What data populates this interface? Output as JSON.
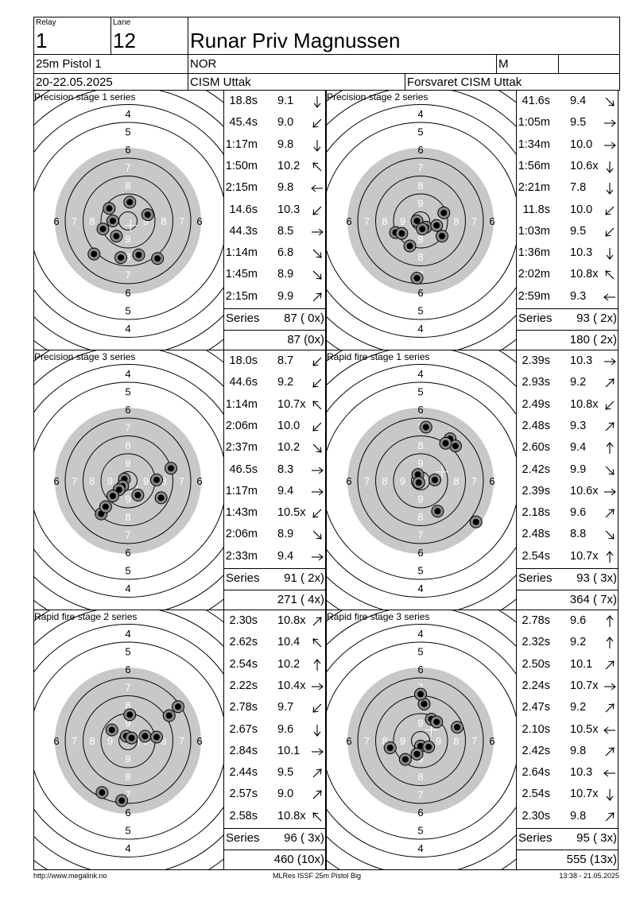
{
  "header": {
    "relay_label": "Relay",
    "relay": "1",
    "lane_label": "Lane",
    "lane": "12",
    "name": "Runar Priv Magnussen",
    "event": "25m Pistol 1",
    "nation": "NOR",
    "gender": "M",
    "dates": "20-22.05.2025",
    "competition": "CISM Uttak",
    "club": "Forsvaret CISM Uttak"
  },
  "panels": [
    {
      "title": "Precision stage 1 series",
      "series_label": "Series",
      "series_total": "87 ( 0x)",
      "running_total": "87 (0x)",
      "shots": [
        {
          "time": "18.8s",
          "score": "9.1",
          "arrow": "S"
        },
        {
          "time": "45.4s",
          "score": "9.0",
          "arrow": "SW"
        },
        {
          "time": "1:17m",
          "score": "9.8",
          "arrow": "S"
        },
        {
          "time": "1:50m",
          "score": "10.2",
          "arrow": "NW"
        },
        {
          "time": "2:15m",
          "score": "9.8",
          "arrow": "W"
        },
        {
          "time": "14.6s",
          "score": "10.3",
          "arrow": "SW"
        },
        {
          "time": "44.3s",
          "score": "8.5",
          "arrow": "E"
        },
        {
          "time": "1:14m",
          "score": "6.8",
          "arrow": "SE"
        },
        {
          "time": "1:45m",
          "score": "8.9",
          "arrow": "SE"
        },
        {
          "time": "2:15m",
          "score": "9.9",
          "arrow": "NE"
        }
      ],
      "hits": [
        [
          -1.05,
          -0.7
        ],
        [
          -1.4,
          0.45
        ],
        [
          -0.65,
          0.85
        ],
        [
          -0.85,
          0.0
        ],
        [
          0.1,
          -1.05
        ],
        [
          1.1,
          -0.35
        ],
        [
          1.65,
          2.1
        ],
        [
          -1.9,
          1.85
        ],
        [
          -0.4,
          2.05
        ],
        [
          0.6,
          1.9
        ]
      ],
      "cross": [
        0.15,
        0.25
      ]
    },
    {
      "title": "Precision stage 2 series",
      "series_label": "Series",
      "series_total": "93 ( 2x)",
      "running_total": "180 ( 2x)",
      "shots": [
        {
          "time": "41.6s",
          "score": "9.4",
          "arrow": "SE"
        },
        {
          "time": "1:05m",
          "score": "9.5",
          "arrow": "E"
        },
        {
          "time": "1:34m",
          "score": "10.0",
          "arrow": "E"
        },
        {
          "time": "1:56m",
          "score": "10.6x",
          "arrow": "S"
        },
        {
          "time": "2:21m",
          "score": "7.8",
          "arrow": "S"
        },
        {
          "time": "11.8s",
          "score": "10.0",
          "arrow": "SW"
        },
        {
          "time": "1:03m",
          "score": "9.5",
          "arrow": "SW"
        },
        {
          "time": "1:36m",
          "score": "10.3",
          "arrow": "S"
        },
        {
          "time": "2:02m",
          "score": "10.8x",
          "arrow": "NW"
        },
        {
          "time": "2:59m",
          "score": "9.3",
          "arrow": "W"
        }
      ],
      "hits": [
        [
          -0.2,
          0.0
        ],
        [
          0.3,
          0.35
        ],
        [
          -1.4,
          0.65
        ],
        [
          -0.6,
          1.4
        ],
        [
          -0.2,
          3.2
        ],
        [
          1.2,
          0.85
        ],
        [
          0.1,
          0.45
        ],
        [
          0.9,
          0.25
        ],
        [
          1.3,
          -0.45
        ],
        [
          -1.05,
          0.7
        ]
      ],
      "cross": [
        0.05,
        0.6
      ]
    },
    {
      "title": "Precision stage 3 series",
      "series_label": "Series",
      "series_total": "91 ( 2x)",
      "running_total": "271 ( 4x)",
      "shots": [
        {
          "time": "18.0s",
          "score": "8.7",
          "arrow": "SW"
        },
        {
          "time": "44.6s",
          "score": "9.2",
          "arrow": "SW"
        },
        {
          "time": "1:14m",
          "score": "10.7x",
          "arrow": "NW"
        },
        {
          "time": "2:06m",
          "score": "10.0",
          "arrow": "SW"
        },
        {
          "time": "2:37m",
          "score": "10.2",
          "arrow": "SE"
        },
        {
          "time": "46.5s",
          "score": "8.3",
          "arrow": "E"
        },
        {
          "time": "1:17m",
          "score": "9.4",
          "arrow": "E"
        },
        {
          "time": "1:43m",
          "score": "10.5x",
          "arrow": "SW"
        },
        {
          "time": "2:06m",
          "score": "8.9",
          "arrow": "SE"
        },
        {
          "time": "2:33m",
          "score": "9.4",
          "arrow": "E"
        }
      ],
      "hits": [
        [
          -1.5,
          1.85
        ],
        [
          -1.25,
          1.45
        ],
        [
          -0.2,
          -0.1
        ],
        [
          -0.3,
          0.3
        ],
        [
          0.55,
          0.8
        ],
        [
          2.4,
          -0.7
        ],
        [
          1.6,
          -0.05
        ],
        [
          -0.5,
          0.5
        ],
        [
          1.85,
          0.95
        ],
        [
          -0.85,
          0.85
        ]
      ],
      "cross": [
        0.5,
        0.6
      ]
    },
    {
      "title": "Rapid fire stage 1 series",
      "series_label": "Series",
      "series_total": "93 ( 3x)",
      "running_total": "364 ( 7x)",
      "shots": [
        {
          "time": "2.39s",
          "score": "10.3",
          "arrow": "E"
        },
        {
          "time": "2.93s",
          "score": "9.2",
          "arrow": "NE"
        },
        {
          "time": "2.49s",
          "score": "10.8x",
          "arrow": "SW"
        },
        {
          "time": "2.48s",
          "score": "9.3",
          "arrow": "NE"
        },
        {
          "time": "2.60s",
          "score": "9.4",
          "arrow": "N"
        },
        {
          "time": "2.42s",
          "score": "9.9",
          "arrow": "SE"
        },
        {
          "time": "2.39s",
          "score": "10.6x",
          "arrow": "E"
        },
        {
          "time": "2.18s",
          "score": "9.6",
          "arrow": "NE"
        },
        {
          "time": "2.48s",
          "score": "8.8",
          "arrow": "SE"
        },
        {
          "time": "2.54s",
          "score": "10.7x",
          "arrow": "N"
        }
      ],
      "hits": [
        [
          0.8,
          -0.05
        ],
        [
          1.65,
          -2.35
        ],
        [
          -0.15,
          -0.35
        ],
        [
          1.95,
          -1.95
        ],
        [
          0.3,
          -3.0
        ],
        [
          1.4,
          -2.1
        ],
        [
          -0.1,
          0.1
        ],
        [
          0.95,
          1.7
        ],
        [
          3.1,
          2.3
        ],
        [
          -0.1,
          0.1
        ]
      ],
      "cross": [
        1.2,
        -0.5
      ]
    },
    {
      "title": "Rapid fire stage 2 series",
      "series_label": "Series",
      "series_total": "96 ( 3x)",
      "running_total": "460 (10x)",
      "shots": [
        {
          "time": "2.30s",
          "score": "10.8x",
          "arrow": "NE"
        },
        {
          "time": "2.62s",
          "score": "10.4",
          "arrow": "NW"
        },
        {
          "time": "2.54s",
          "score": "10.2",
          "arrow": "N"
        },
        {
          "time": "2.22s",
          "score": "10.4x",
          "arrow": "E"
        },
        {
          "time": "2.78s",
          "score": "9.7",
          "arrow": "SW"
        },
        {
          "time": "2.67s",
          "score": "9.6",
          "arrow": "S"
        },
        {
          "time": "2.84s",
          "score": "10.1",
          "arrow": "E"
        },
        {
          "time": "2.44s",
          "score": "9.5",
          "arrow": "NE"
        },
        {
          "time": "2.57s",
          "score": "9.0",
          "arrow": "NE"
        },
        {
          "time": "2.58s",
          "score": "10.8x",
          "arrow": "NW"
        }
      ],
      "hits": [
        [
          -0.1,
          -0.25
        ],
        [
          -0.9,
          -0.6
        ],
        [
          0.1,
          -1.45
        ],
        [
          0.2,
          -0.15
        ],
        [
          -1.45,
          2.9
        ],
        [
          -0.35,
          3.35
        ],
        [
          0.95,
          -0.25
        ],
        [
          2.3,
          -1.4
        ],
        [
          2.8,
          -1.9
        ],
        [
          1.6,
          -0.2
        ]
      ],
      "cross": [
        0.6,
        -0.1
      ]
    },
    {
      "title": "Rapid fire stage 3 series",
      "series_label": "Series",
      "series_total": "95 ( 3x)",
      "running_total": "555 (13x)",
      "shots": [
        {
          "time": "2.78s",
          "score": "9.6",
          "arrow": "N"
        },
        {
          "time": "2.32s",
          "score": "9.2",
          "arrow": "N"
        },
        {
          "time": "2.50s",
          "score": "10.1",
          "arrow": "NE"
        },
        {
          "time": "2.24s",
          "score": "10.7x",
          "arrow": "E"
        },
        {
          "time": "2.47s",
          "score": "9.2",
          "arrow": "NE"
        },
        {
          "time": "2.10s",
          "score": "10.5x",
          "arrow": "W"
        },
        {
          "time": "2.42s",
          "score": "9.8",
          "arrow": "NE"
        },
        {
          "time": "2.64s",
          "score": "10.3",
          "arrow": "W"
        },
        {
          "time": "2.54s",
          "score": "10.7x",
          "arrow": "S"
        },
        {
          "time": "2.30s",
          "score": "9.8",
          "arrow": "NE"
        }
      ],
      "hits": [
        [
          -0.85,
          1.05
        ],
        [
          0.2,
          -2.05
        ],
        [
          0.6,
          -1.2
        ],
        [
          0.0,
          0.3
        ],
        [
          -1.7,
          0.4
        ],
        [
          0.45,
          0.35
        ],
        [
          0.9,
          -1.05
        ],
        [
          -0.2,
          0.75
        ],
        [
          0.0,
          -2.6
        ],
        [
          2.05,
          -0.75
        ]
      ],
      "cross": [
        0.6,
        -0.6
      ]
    }
  ],
  "footer": {
    "left": "http://www.megalink.no",
    "center": "MLRes ISSF 25m Pistol Big",
    "right": "13:38 - 21.05.2025"
  }
}
